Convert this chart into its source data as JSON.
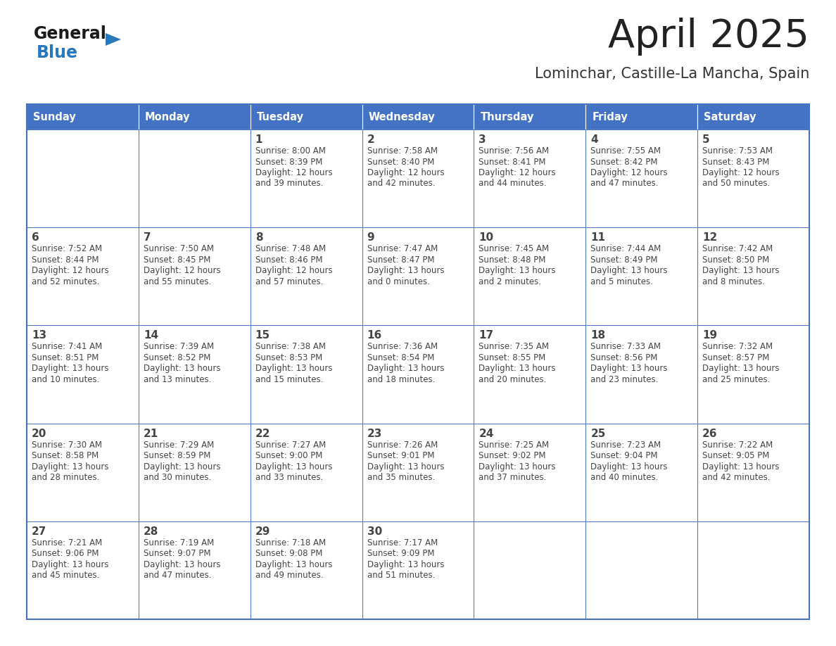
{
  "title": "April 2025",
  "subtitle": "Lominchar, Castille-La Mancha, Spain",
  "header_color": "#4472C4",
  "header_text_color": "#FFFFFF",
  "cell_bg_color": "#FFFFFF",
  "day_names": [
    "Sunday",
    "Monday",
    "Tuesday",
    "Wednesday",
    "Thursday",
    "Friday",
    "Saturday"
  ],
  "title_color": "#222222",
  "subtitle_color": "#333333",
  "text_color": "#444444",
  "line_color": "#4472C4",
  "generalblue_black": "#1a1a1a",
  "generalblue_blue": "#2878BE",
  "calendar": [
    [
      {
        "day": "",
        "info": ""
      },
      {
        "day": "",
        "info": ""
      },
      {
        "day": "1",
        "info": "Sunrise: 8:00 AM\nSunset: 8:39 PM\nDaylight: 12 hours\nand 39 minutes."
      },
      {
        "day": "2",
        "info": "Sunrise: 7:58 AM\nSunset: 8:40 PM\nDaylight: 12 hours\nand 42 minutes."
      },
      {
        "day": "3",
        "info": "Sunrise: 7:56 AM\nSunset: 8:41 PM\nDaylight: 12 hours\nand 44 minutes."
      },
      {
        "day": "4",
        "info": "Sunrise: 7:55 AM\nSunset: 8:42 PM\nDaylight: 12 hours\nand 47 minutes."
      },
      {
        "day": "5",
        "info": "Sunrise: 7:53 AM\nSunset: 8:43 PM\nDaylight: 12 hours\nand 50 minutes."
      }
    ],
    [
      {
        "day": "6",
        "info": "Sunrise: 7:52 AM\nSunset: 8:44 PM\nDaylight: 12 hours\nand 52 minutes."
      },
      {
        "day": "7",
        "info": "Sunrise: 7:50 AM\nSunset: 8:45 PM\nDaylight: 12 hours\nand 55 minutes."
      },
      {
        "day": "8",
        "info": "Sunrise: 7:48 AM\nSunset: 8:46 PM\nDaylight: 12 hours\nand 57 minutes."
      },
      {
        "day": "9",
        "info": "Sunrise: 7:47 AM\nSunset: 8:47 PM\nDaylight: 13 hours\nand 0 minutes."
      },
      {
        "day": "10",
        "info": "Sunrise: 7:45 AM\nSunset: 8:48 PM\nDaylight: 13 hours\nand 2 minutes."
      },
      {
        "day": "11",
        "info": "Sunrise: 7:44 AM\nSunset: 8:49 PM\nDaylight: 13 hours\nand 5 minutes."
      },
      {
        "day": "12",
        "info": "Sunrise: 7:42 AM\nSunset: 8:50 PM\nDaylight: 13 hours\nand 8 minutes."
      }
    ],
    [
      {
        "day": "13",
        "info": "Sunrise: 7:41 AM\nSunset: 8:51 PM\nDaylight: 13 hours\nand 10 minutes."
      },
      {
        "day": "14",
        "info": "Sunrise: 7:39 AM\nSunset: 8:52 PM\nDaylight: 13 hours\nand 13 minutes."
      },
      {
        "day": "15",
        "info": "Sunrise: 7:38 AM\nSunset: 8:53 PM\nDaylight: 13 hours\nand 15 minutes."
      },
      {
        "day": "16",
        "info": "Sunrise: 7:36 AM\nSunset: 8:54 PM\nDaylight: 13 hours\nand 18 minutes."
      },
      {
        "day": "17",
        "info": "Sunrise: 7:35 AM\nSunset: 8:55 PM\nDaylight: 13 hours\nand 20 minutes."
      },
      {
        "day": "18",
        "info": "Sunrise: 7:33 AM\nSunset: 8:56 PM\nDaylight: 13 hours\nand 23 minutes."
      },
      {
        "day": "19",
        "info": "Sunrise: 7:32 AM\nSunset: 8:57 PM\nDaylight: 13 hours\nand 25 minutes."
      }
    ],
    [
      {
        "day": "20",
        "info": "Sunrise: 7:30 AM\nSunset: 8:58 PM\nDaylight: 13 hours\nand 28 minutes."
      },
      {
        "day": "21",
        "info": "Sunrise: 7:29 AM\nSunset: 8:59 PM\nDaylight: 13 hours\nand 30 minutes."
      },
      {
        "day": "22",
        "info": "Sunrise: 7:27 AM\nSunset: 9:00 PM\nDaylight: 13 hours\nand 33 minutes."
      },
      {
        "day": "23",
        "info": "Sunrise: 7:26 AM\nSunset: 9:01 PM\nDaylight: 13 hours\nand 35 minutes."
      },
      {
        "day": "24",
        "info": "Sunrise: 7:25 AM\nSunset: 9:02 PM\nDaylight: 13 hours\nand 37 minutes."
      },
      {
        "day": "25",
        "info": "Sunrise: 7:23 AM\nSunset: 9:04 PM\nDaylight: 13 hours\nand 40 minutes."
      },
      {
        "day": "26",
        "info": "Sunrise: 7:22 AM\nSunset: 9:05 PM\nDaylight: 13 hours\nand 42 minutes."
      }
    ],
    [
      {
        "day": "27",
        "info": "Sunrise: 7:21 AM\nSunset: 9:06 PM\nDaylight: 13 hours\nand 45 minutes."
      },
      {
        "day": "28",
        "info": "Sunrise: 7:19 AM\nSunset: 9:07 PM\nDaylight: 13 hours\nand 47 minutes."
      },
      {
        "day": "29",
        "info": "Sunrise: 7:18 AM\nSunset: 9:08 PM\nDaylight: 13 hours\nand 49 minutes."
      },
      {
        "day": "30",
        "info": "Sunrise: 7:17 AM\nSunset: 9:09 PM\nDaylight: 13 hours\nand 51 minutes."
      },
      {
        "day": "",
        "info": ""
      },
      {
        "day": "",
        "info": ""
      },
      {
        "day": "",
        "info": ""
      }
    ]
  ]
}
